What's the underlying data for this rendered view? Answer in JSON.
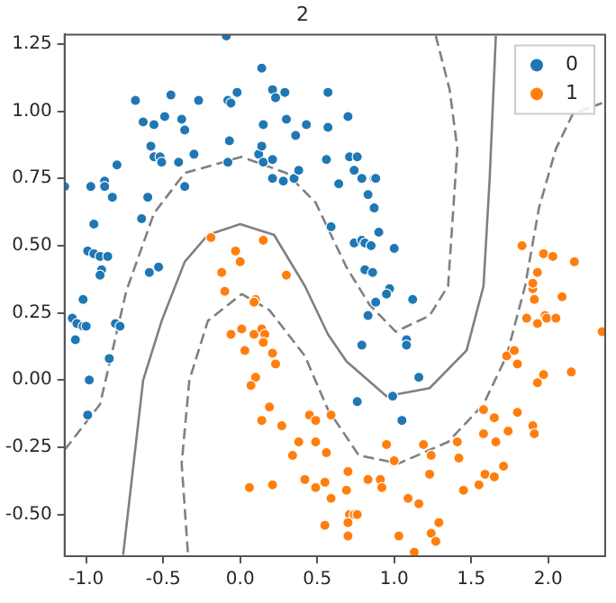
{
  "chart_data": {
    "type": "scatter",
    "title": "2",
    "legend": "top right",
    "grid": false,
    "marker": "circle",
    "xlim": [
      -1.14,
      2.37
    ],
    "ylim": [
      -0.655,
      1.285
    ],
    "xticks": [
      {
        "value": -1,
        "label": "-1.0"
      },
      {
        "value": -0.5,
        "label": "-0.5"
      },
      {
        "value": 0,
        "label": "0.0"
      },
      {
        "value": 0.5,
        "label": "0.5"
      },
      {
        "value": 1,
        "label": "1.0"
      },
      {
        "value": 1.5,
        "label": "1.5"
      },
      {
        "value": 2,
        "label": "2.0"
      }
    ],
    "yticks": [
      {
        "value": -0.5,
        "label": "-0.50"
      },
      {
        "value": -0.25,
        "label": "-0.25"
      },
      {
        "value": 0,
        "label": "0.00"
      },
      {
        "value": 0.25,
        "label": "0.25"
      },
      {
        "value": 0.5,
        "label": "0.50"
      },
      {
        "value": 0.75,
        "label": "0.75"
      },
      {
        "value": 1,
        "label": "1.00"
      },
      {
        "value": 1.25,
        "label": "1.25"
      }
    ],
    "series": [
      {
        "type": "line",
        "color": "#808080",
        "line_style": "solid",
        "marker": "none",
        "x": [
          -0.76,
          -0.63,
          -0.51,
          -0.36,
          -0.21,
          0.0,
          0.22,
          0.42,
          0.57,
          0.69,
          0.95,
          1.23,
          1.47,
          1.58,
          1.62,
          1.66
        ],
        "values": [
          -0.65,
          0.0,
          0.22,
          0.44,
          0.54,
          0.58,
          0.54,
          0.35,
          0.17,
          0.07,
          -0.06,
          -0.03,
          0.11,
          0.35,
          0.75,
          1.28
        ]
      },
      {
        "type": "line",
        "color": "#808080",
        "line_style": "dashed",
        "marker": "none",
        "x": [
          -1.14,
          -0.91,
          -0.74,
          -0.56,
          -0.36,
          0.01,
          0.3,
          0.49,
          0.69,
          0.84,
          1.01,
          1.23,
          1.35,
          1.41,
          1.36,
          1.27
        ],
        "values": [
          -0.26,
          -0.09,
          0.33,
          0.62,
          0.77,
          0.83,
          0.77,
          0.66,
          0.42,
          0.28,
          0.18,
          0.24,
          0.35,
          0.86,
          1.08,
          1.28
        ]
      },
      {
        "type": "line",
        "color": "#808080",
        "line_style": "dashed",
        "marker": "none",
        "x": [
          -0.34,
          -0.38,
          -0.33,
          -0.21,
          0.01,
          0.19,
          0.42,
          0.57,
          0.77,
          1.03,
          1.35,
          1.58,
          1.73,
          1.85,
          1.94,
          2.05,
          2.16,
          2.35
        ],
        "values": [
          -0.64,
          -0.31,
          0.0,
          0.22,
          0.32,
          0.26,
          0.09,
          -0.11,
          -0.28,
          -0.31,
          -0.23,
          -0.09,
          0.09,
          0.35,
          0.64,
          0.86,
          0.99,
          1.03
        ]
      },
      {
        "type": "scatter",
        "name": "0",
        "color": "#1f77b4",
        "x": [
          -0.09,
          0.14,
          -0.68,
          -0.45,
          -0.08,
          -0.06,
          -0.02,
          0.21,
          0.23,
          0.29,
          -0.27,
          -0.63,
          -0.56,
          -0.49,
          -0.38,
          -0.36,
          0.15,
          0.3,
          0.36,
          0.43,
          0.57,
          0.57,
          -0.07,
          -0.58,
          -0.56,
          -0.52,
          -0.51,
          -0.4,
          -0.3,
          -0.08,
          0.12,
          0.14,
          0.15,
          0.21,
          0.21,
          0.28,
          0.35,
          0.38,
          0.56,
          -0.8,
          -0.97,
          -0.88,
          -0.88,
          -0.83,
          -1.14,
          -0.6,
          -0.36,
          -0.95,
          -0.64,
          -0.99,
          -0.95,
          -0.91,
          -0.86,
          -0.9,
          -0.91,
          -0.59,
          -0.53,
          -1.02,
          0.7,
          0.71,
          0.76,
          0.74,
          0.79,
          0.87,
          0.88,
          0.64,
          0.83,
          0.87,
          0.59,
          0.9,
          0.74,
          0.79,
          0.81,
          0.85,
          1.0,
          0.81,
          0.86,
          0.97,
          0.95,
          0.88,
          1.12,
          0.83,
          0.79,
          1.08,
          1.08,
          1.16,
          0.76,
          0.99,
          1.05,
          -1.09,
          -1.06,
          -1.02,
          -1.0,
          -1.07,
          -0.81,
          -0.78,
          -0.85,
          -0.98,
          -0.99
        ],
        "values": [
          1.28,
          1.16,
          1.04,
          1.06,
          1.04,
          1.03,
          1.07,
          1.08,
          1.05,
          1.07,
          1.04,
          0.96,
          0.95,
          0.98,
          0.97,
          0.93,
          0.95,
          0.97,
          0.91,
          0.95,
          1.07,
          0.94,
          0.89,
          0.87,
          0.83,
          0.83,
          0.81,
          0.81,
          0.84,
          0.81,
          0.84,
          0.87,
          0.81,
          0.82,
          0.75,
          0.74,
          0.75,
          0.78,
          0.82,
          0.8,
          0.72,
          0.74,
          0.72,
          0.68,
          0.72,
          0.68,
          0.72,
          0.58,
          0.6,
          0.48,
          0.47,
          0.46,
          0.46,
          0.41,
          0.39,
          0.4,
          0.42,
          0.3,
          0.98,
          0.83,
          0.83,
          0.78,
          0.75,
          0.75,
          0.75,
          0.73,
          0.69,
          0.64,
          0.57,
          0.55,
          0.51,
          0.52,
          0.51,
          0.5,
          0.49,
          0.41,
          0.4,
          0.34,
          0.32,
          0.29,
          0.3,
          0.24,
          0.13,
          0.15,
          0.13,
          0.01,
          -0.08,
          -0.06,
          -0.15,
          0.23,
          0.21,
          0.2,
          0.2,
          0.15,
          0.21,
          0.2,
          0.08,
          0.0,
          -0.13
        ]
      },
      {
        "type": "scatter",
        "name": "1",
        "color": "#ff7f0e",
        "x": [
          -0.19,
          -0.03,
          0.0,
          0.15,
          -0.12,
          0.3,
          -0.1,
          0.1,
          0.09,
          -0.06,
          0.01,
          0.09,
          0.14,
          0.16,
          0.15,
          0.03,
          0.21,
          0.23,
          0.1,
          0.07,
          0.19,
          0.14,
          0.27,
          0.45,
          0.49,
          0.38,
          0.49,
          0.34,
          0.56,
          0.42,
          0.49,
          0.55,
          0.06,
          0.21,
          0.55,
          0.59,
          0.59,
          0.7,
          0.69,
          0.83,
          0.91,
          0.92,
          0.71,
          0.74,
          0.76,
          0.7,
          0.7,
          1.03,
          1.13,
          1.09,
          1.16,
          1.24,
          1.27,
          1.29,
          1.23,
          1.45,
          1.55,
          1.59,
          1.65,
          1.71,
          0.95,
          1.0,
          1.19,
          1.24,
          1.41,
          1.42,
          1.58,
          1.66,
          1.74,
          1.58,
          1.65,
          1.8,
          1.9,
          1.91,
          1.73,
          1.78,
          1.8,
          1.93,
          1.97,
          2.15,
          2.35,
          1.9,
          1.91,
          2.09,
          1.86,
          1.93,
          1.98,
          1.99,
          2.05,
          1.83,
          1.97,
          2.03,
          2.17,
          1.93,
          1.9
        ],
        "values": [
          0.53,
          0.48,
          0.44,
          0.52,
          0.4,
          0.39,
          0.33,
          0.3,
          0.29,
          0.17,
          0.19,
          0.17,
          0.19,
          0.17,
          0.14,
          0.11,
          0.1,
          0.06,
          0.01,
          -0.02,
          -0.1,
          -0.15,
          -0.17,
          -0.13,
          -0.15,
          -0.23,
          -0.23,
          -0.28,
          -0.27,
          -0.37,
          -0.4,
          -0.38,
          -0.4,
          -0.39,
          -0.54,
          -0.13,
          -0.44,
          -0.34,
          -0.41,
          -0.37,
          -0.37,
          -0.4,
          -0.5,
          -0.5,
          -0.5,
          -0.53,
          -0.58,
          -0.58,
          -0.64,
          -0.44,
          -0.46,
          -0.57,
          -0.6,
          -0.53,
          -0.35,
          -0.41,
          -0.39,
          -0.35,
          -0.36,
          -0.32,
          -0.24,
          -0.3,
          -0.24,
          -0.28,
          -0.23,
          -0.29,
          -0.2,
          -0.23,
          -0.19,
          -0.11,
          -0.14,
          -0.12,
          -0.17,
          -0.2,
          0.09,
          0.11,
          0.06,
          -0.01,
          0.02,
          0.03,
          0.18,
          0.34,
          0.3,
          0.31,
          0.23,
          0.21,
          0.24,
          0.23,
          0.23,
          0.5,
          0.47,
          0.46,
          0.44,
          0.4,
          0.36
        ]
      }
    ]
  }
}
